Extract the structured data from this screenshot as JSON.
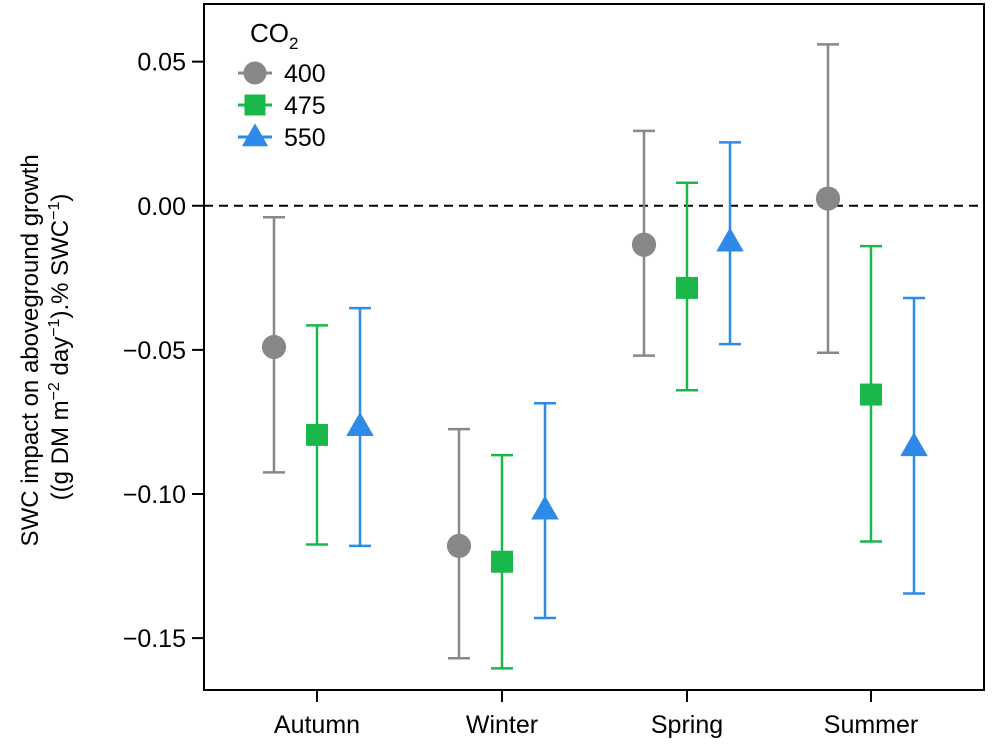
{
  "chart_data": {
    "type": "scatter",
    "title": "",
    "xlabel": "",
    "ylabel_line1": "SWC impact on aboveground growth",
    "ylabel_line2_parts": [
      "((g DM m",
      "−2",
      " day",
      "−1",
      ").% SWC",
      "−1",
      ")"
    ],
    "categories": [
      "Autumn",
      "Winter",
      "Spring",
      "Summer"
    ],
    "ylim": [
      -0.168,
      0.07
    ],
    "yticks": [
      0.05,
      0.0,
      -0.05,
      -0.1,
      -0.15
    ],
    "ytick_labels": [
      "0.05",
      "0.00",
      "−0.05",
      "−0.10",
      "−0.15"
    ],
    "reference_line": 0.0,
    "legend": {
      "title": "CO",
      "title_sub": "2",
      "placement": "top-left"
    },
    "series": [
      {
        "name": "400",
        "color": "#888888",
        "marker": "circle",
        "values": [
          -0.049,
          -0.118,
          -0.0135,
          0.0025
        ],
        "lower": [
          -0.0925,
          -0.157,
          -0.052,
          -0.051
        ],
        "upper": [
          -0.004,
          -0.0775,
          0.026,
          0.056
        ]
      },
      {
        "name": "475",
        "color": "#1ab84a",
        "marker": "square",
        "values": [
          -0.0795,
          -0.1235,
          -0.0285,
          -0.0655
        ],
        "lower": [
          -0.1175,
          -0.1605,
          -0.064,
          -0.1165
        ],
        "upper": [
          -0.0415,
          -0.0865,
          0.008,
          -0.014
        ]
      },
      {
        "name": "550",
        "color": "#2d8ae8",
        "marker": "triangle",
        "values": [
          -0.0765,
          -0.1055,
          -0.0125,
          -0.0835
        ],
        "lower": [
          -0.118,
          -0.143,
          -0.048,
          -0.1345
        ],
        "upper": [
          -0.0355,
          -0.0685,
          0.022,
          -0.032
        ]
      }
    ]
  }
}
